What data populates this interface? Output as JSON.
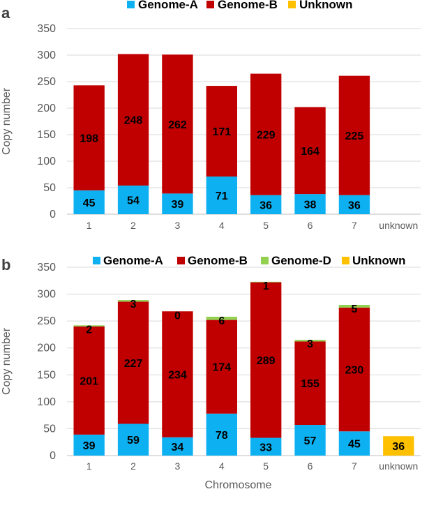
{
  "chart_data": [
    {
      "panel_label": "a",
      "type": "bar",
      "stacked": true,
      "categories": [
        "1",
        "2",
        "3",
        "4",
        "5",
        "6",
        "7",
        "unknown"
      ],
      "series": [
        {
          "name": "Genome-A",
          "color": "#0db0f0",
          "values": [
            45,
            54,
            39,
            71,
            36,
            38,
            36,
            0
          ]
        },
        {
          "name": "Genome-B",
          "color": "#c00000",
          "values": [
            198,
            248,
            262,
            171,
            229,
            164,
            225,
            0
          ]
        },
        {
          "name": "Unknown",
          "color": "#ffc000",
          "values": [
            0,
            0,
            0,
            0,
            0,
            0,
            0,
            0
          ]
        }
      ],
      "data_labels": [
        {
          "series": "Genome-A",
          "category": "1",
          "text": "45"
        },
        {
          "series": "Genome-A",
          "category": "2",
          "text": "54"
        },
        {
          "series": "Genome-A",
          "category": "3",
          "text": "39"
        },
        {
          "series": "Genome-A",
          "category": "4",
          "text": "71"
        },
        {
          "series": "Genome-A",
          "category": "5",
          "text": "36"
        },
        {
          "series": "Genome-A",
          "category": "6",
          "text": "38"
        },
        {
          "series": "Genome-A",
          "category": "7",
          "text": "36"
        },
        {
          "series": "Genome-B",
          "category": "1",
          "text": "198"
        },
        {
          "series": "Genome-B",
          "category": "2",
          "text": "248"
        },
        {
          "series": "Genome-B",
          "category": "3",
          "text": "262"
        },
        {
          "series": "Genome-B",
          "category": "4",
          "text": "171"
        },
        {
          "series": "Genome-B",
          "category": "5",
          "text": "229"
        },
        {
          "series": "Genome-B",
          "category": "6",
          "text": "164"
        },
        {
          "series": "Genome-B",
          "category": "7",
          "text": "225"
        }
      ],
      "legend": [
        "Genome-A",
        "Genome-B",
        "Unknown"
      ],
      "legend_position": "top",
      "xlabel": "",
      "ylabel": "Copy number",
      "ylim": [
        0,
        350
      ],
      "yticks": [
        0,
        50,
        100,
        150,
        200,
        250,
        300,
        350
      ],
      "grid": true
    },
    {
      "panel_label": "b",
      "type": "bar",
      "stacked": true,
      "categories": [
        "1",
        "2",
        "3",
        "4",
        "5",
        "6",
        "7",
        "unknown"
      ],
      "series": [
        {
          "name": "Genome-A",
          "color": "#0db0f0",
          "values": [
            39,
            59,
            34,
            78,
            33,
            57,
            45,
            0
          ]
        },
        {
          "name": "Genome-B",
          "color": "#c00000",
          "values": [
            201,
            227,
            234,
            174,
            289,
            155,
            230,
            0
          ]
        },
        {
          "name": "Genome-D",
          "color": "#92d050",
          "values": [
            2,
            3,
            0,
            6,
            1,
            3,
            5,
            0
          ]
        },
        {
          "name": "Unknown",
          "color": "#ffc000",
          "values": [
            0,
            0,
            0,
            0,
            0,
            0,
            0,
            36
          ]
        }
      ],
      "data_labels": [
        {
          "series": "Genome-A",
          "category": "1",
          "text": "39"
        },
        {
          "series": "Genome-A",
          "category": "2",
          "text": "59"
        },
        {
          "series": "Genome-A",
          "category": "3",
          "text": "34"
        },
        {
          "series": "Genome-A",
          "category": "4",
          "text": "78"
        },
        {
          "series": "Genome-A",
          "category": "5",
          "text": "33"
        },
        {
          "series": "Genome-A",
          "category": "6",
          "text": "57"
        },
        {
          "series": "Genome-A",
          "category": "7",
          "text": "45"
        },
        {
          "series": "Genome-B",
          "category": "1",
          "text": "201"
        },
        {
          "series": "Genome-B",
          "category": "2",
          "text": "227"
        },
        {
          "series": "Genome-B",
          "category": "3",
          "text": "234"
        },
        {
          "series": "Genome-B",
          "category": "4",
          "text": "174"
        },
        {
          "series": "Genome-B",
          "category": "5",
          "text": "289"
        },
        {
          "series": "Genome-B",
          "category": "6",
          "text": "155"
        },
        {
          "series": "Genome-B",
          "category": "7",
          "text": "230"
        },
        {
          "series": "Genome-D",
          "category": "1",
          "text": "2"
        },
        {
          "series": "Genome-D",
          "category": "2",
          "text": "3"
        },
        {
          "series": "Genome-D",
          "category": "3",
          "text": "0"
        },
        {
          "series": "Genome-D",
          "category": "4",
          "text": "6"
        },
        {
          "series": "Genome-D",
          "category": "5",
          "text": "1"
        },
        {
          "series": "Genome-D",
          "category": "6",
          "text": "3"
        },
        {
          "series": "Genome-D",
          "category": "7",
          "text": "5"
        },
        {
          "series": "Unknown",
          "category": "unknown",
          "text": "36"
        }
      ],
      "legend": [
        "Genome-A",
        "Genome-B",
        "Genome-D",
        "Unknown"
      ],
      "legend_position": "top",
      "xlabel": "Chromosome",
      "ylabel": "Copy number",
      "ylim": [
        0,
        350
      ],
      "yticks": [
        0,
        50,
        100,
        150,
        200,
        250,
        300,
        350
      ],
      "grid": true
    }
  ]
}
